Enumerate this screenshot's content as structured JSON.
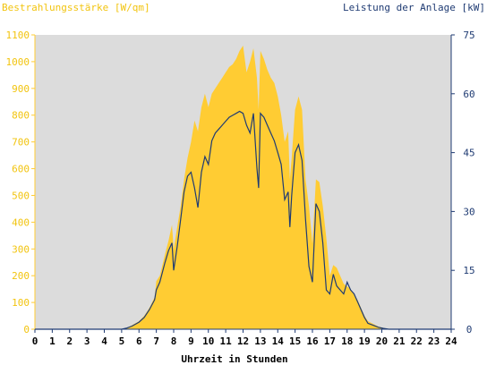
{
  "colors": {
    "background": "#ffffff",
    "plot_background": "#dcdcdc",
    "irradiance": "#ffcc33",
    "power": "#1f3b73",
    "left_axis_text": "#f2c40f",
    "right_axis_text": "#1f3b73"
  },
  "chart_data": {
    "type": "area",
    "title_left": "Bestrahlungsstärke [W/qm]",
    "title_right": "Leistung der Anlage [kW]",
    "xlabel": "Uhrzeit in Stunden",
    "xlim": [
      0,
      24
    ],
    "ylim_left": [
      0,
      1100
    ],
    "ylim_right": [
      0,
      75
    ],
    "x_ticks": [
      "0",
      "1",
      "2",
      "3",
      "4",
      "5",
      "6",
      "7",
      "8",
      "9",
      "10",
      "11",
      "12",
      "13",
      "14",
      "15",
      "16",
      "17",
      "18",
      "19",
      "20",
      "21",
      "22",
      "23",
      "24"
    ],
    "y_left_ticks": [
      "0",
      "100",
      "200",
      "300",
      "400",
      "500",
      "600",
      "700",
      "800",
      "900",
      "1000",
      "1100"
    ],
    "y_right_ticks": [
      "0",
      "15",
      "30",
      "45",
      "60",
      "75"
    ],
    "series": [
      {
        "name": "Bestrahlungsstärke [W/qm]",
        "axis": "left",
        "style": "area",
        "x": [
          0,
          5,
          5.3,
          5.6,
          6,
          6.3,
          6.6,
          6.9,
          7.0,
          7.2,
          7.5,
          7.7,
          7.9,
          8.0,
          8.2,
          8.4,
          8.6,
          8.8,
          9.0,
          9.2,
          9.4,
          9.6,
          9.8,
          10.0,
          10.2,
          10.4,
          10.6,
          10.8,
          11.0,
          11.2,
          11.4,
          11.6,
          11.8,
          12.0,
          12.2,
          12.4,
          12.6,
          12.8,
          12.9,
          13.0,
          13.2,
          13.4,
          13.6,
          13.8,
          14.0,
          14.2,
          14.4,
          14.6,
          14.7,
          14.8,
          15.0,
          15.2,
          15.4,
          15.6,
          15.8,
          16.0,
          16.2,
          16.4,
          16.6,
          16.8,
          17.0,
          17.2,
          17.4,
          17.6,
          17.8,
          18.0,
          18.2,
          18.4,
          18.6,
          18.8,
          19.0,
          19.2,
          19.5,
          19.8,
          20.1,
          20.4,
          24
        ],
        "y": [
          0,
          0,
          5,
          15,
          30,
          50,
          80,
          120,
          180,
          200,
          280,
          330,
          390,
          300,
          380,
          460,
          560,
          640,
          700,
          780,
          740,
          830,
          880,
          830,
          880,
          900,
          920,
          940,
          960,
          980,
          990,
          1010,
          1040,
          1060,
          960,
          1000,
          1050,
          940,
          820,
          1040,
          1010,
          970,
          940,
          920,
          870,
          800,
          700,
          740,
          560,
          640,
          820,
          870,
          820,
          560,
          460,
          320,
          560,
          550,
          460,
          340,
          200,
          240,
          230,
          200,
          170,
          160,
          150,
          130,
          110,
          80,
          50,
          30,
          20,
          10,
          5,
          0,
          0
        ]
      },
      {
        "name": "Leistung der Anlage [kW]",
        "axis": "right",
        "style": "line",
        "x": [
          0,
          5,
          5.3,
          5.6,
          6,
          6.3,
          6.6,
          6.9,
          7.0,
          7.2,
          7.5,
          7.7,
          7.9,
          8.0,
          8.2,
          8.4,
          8.6,
          8.8,
          9.0,
          9.2,
          9.4,
          9.6,
          9.8,
          10.0,
          10.2,
          10.4,
          10.6,
          10.8,
          11.0,
          11.2,
          11.4,
          11.6,
          11.8,
          12.0,
          12.2,
          12.4,
          12.6,
          12.8,
          12.9,
          13.0,
          13.2,
          13.4,
          13.6,
          13.8,
          14.0,
          14.2,
          14.4,
          14.6,
          14.7,
          14.8,
          15.0,
          15.2,
          15.4,
          15.6,
          15.8,
          16.0,
          16.2,
          16.4,
          16.6,
          16.8,
          17.0,
          17.2,
          17.4,
          17.6,
          17.8,
          18.0,
          18.2,
          18.4,
          18.6,
          18.8,
          19.0,
          19.2,
          19.5,
          19.8,
          20.1,
          20.4,
          24
        ],
        "y": [
          0,
          0,
          0.3,
          0.8,
          1.8,
          3,
          5,
          7.5,
          10,
          12,
          17,
          20,
          22,
          15,
          21,
          28,
          35,
          39,
          40,
          36,
          31,
          40,
          44,
          42,
          48,
          50,
          51,
          52,
          53,
          54,
          54.5,
          55,
          55.5,
          55,
          52,
          50,
          55,
          41,
          36,
          55,
          54,
          52,
          50,
          48,
          45,
          42,
          33,
          35,
          26,
          34,
          45,
          47,
          43,
          28,
          16,
          12,
          32,
          30,
          22,
          10,
          9,
          14,
          11,
          10,
          9,
          12,
          10,
          9,
          7,
          5,
          3,
          1.5,
          1,
          0.5,
          0.2,
          0,
          0
        ]
      }
    ]
  }
}
